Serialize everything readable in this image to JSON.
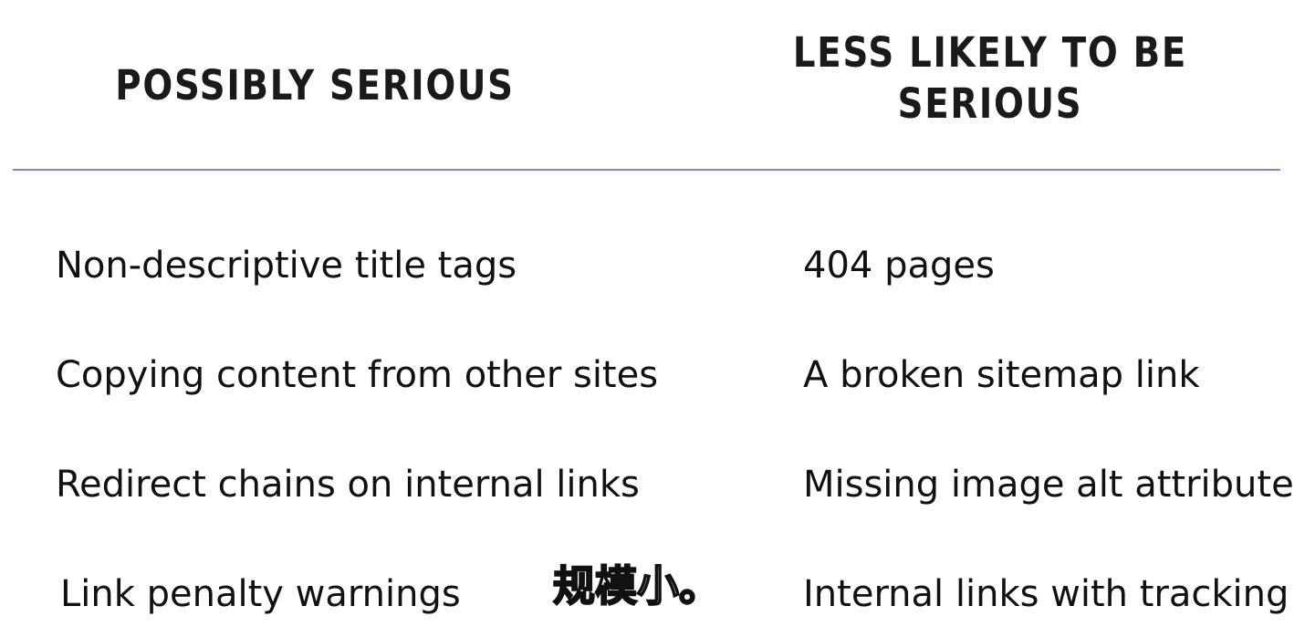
{
  "columns": {
    "left": {
      "title": "POSSIBLY SERIOUS",
      "items": [
        "Non-descriptive title tags",
        "Copying content from other sites",
        "Redirect chains on internal links",
        "Link penalty warnings"
      ]
    },
    "right": {
      "title_line1": "LESS LIKELY TO BE",
      "title_line2": "SERIOUS",
      "items": [
        "404 pages",
        "A broken sitemap link",
        "Missing image alt attribute",
        "Internal links with tracking"
      ]
    }
  },
  "subtitle": "规模小。",
  "colors": {
    "divider": "#8a84c6",
    "text": "#111111"
  }
}
